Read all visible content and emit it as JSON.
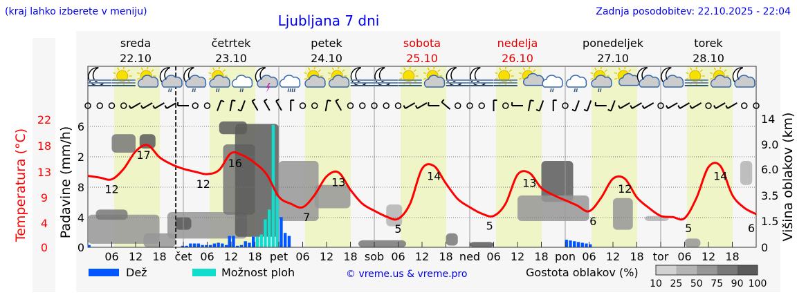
{
  "header": {
    "left_note": "(kraj lahko izberete v meniju)",
    "title": "Ljubljana 7 dni",
    "updated": "Zadnja posodobitev: 22.10.2025 - 22:04"
  },
  "days": [
    {
      "name": "sreda",
      "date": "22.10",
      "weekend": false
    },
    {
      "name": "četrtek",
      "date": "23.10",
      "weekend": false
    },
    {
      "name": "petek",
      "date": "24.10",
      "weekend": false
    },
    {
      "name": "sobota",
      "date": "25.10",
      "weekend": true
    },
    {
      "name": "nedelja",
      "date": "26.10",
      "weekend": true
    },
    {
      "name": "ponedeljek",
      "date": "27.10",
      "weekend": false
    },
    {
      "name": "torek",
      "date": "28.10",
      "weekend": false
    }
  ],
  "colors": {
    "temperature": "#ff0000",
    "rain": "#0055ff",
    "showers": "#11ddcc",
    "daylight": "#f0f5c8",
    "weekend": "#dd0000",
    "link": "#0000ee"
  },
  "icons": [
    "moon-fog",
    "sun-fog",
    "sun-cloud",
    "moon-cloud-rain",
    "moon-cloud-rain",
    "sun-cloud-rain",
    "cloud-rain",
    "moon-cloud-thunder",
    "cloud-heavy-rain",
    "sun-cloud",
    "sun-cloud",
    "moon-fog",
    "moon-fog",
    "sun-fog",
    "sun-cloud",
    "moon-fog",
    "moon-fog",
    "sun-fog",
    "sun-small-cloud",
    "cloud-rain",
    "cloud-rain",
    "sun-cloud-rain",
    "sun-small-cloud",
    "moon-cloud",
    "moon-cloud",
    "sun-fog",
    "sun-cloud",
    "moon-cloud"
  ],
  "chart_data": {
    "type": "line",
    "title": "Ljubljana 7 dni",
    "x_unit": "hours from 22.10 00:00",
    "x_tick_labels": [
      "06",
      "12",
      "18",
      "čet",
      "06",
      "12",
      "18",
      "pet",
      "06",
      "12",
      "18",
      "sob",
      "06",
      "12",
      "18",
      "ned",
      "06",
      "12",
      "18",
      "pon",
      "06",
      "12",
      "18",
      "tor",
      "06",
      "12",
      "18"
    ],
    "left_axis_temperature": {
      "label": "Temperatura (°C)",
      "ticks": [
        "0",
        "4",
        "9",
        "13",
        "18",
        "22"
      ],
      "range": [
        0,
        22
      ]
    },
    "left_axis_precip": {
      "label": "Padavine (mm/h)",
      "ticks": [
        "0",
        "4",
        "8",
        "2",
        "6"
      ]
    },
    "right_axis_clouds": {
      "label": "Višina oblakov (km)",
      "ticks": [
        "0",
        "1.5",
        "3.5",
        "6.0",
        "9.0",
        "14"
      ]
    },
    "temperature": {
      "step_hours": 3,
      "values": [
        12.3,
        12.0,
        11.7,
        13.5,
        16.5,
        17.6,
        15.5,
        14.3,
        13.5,
        13.0,
        12.6,
        13.3,
        16.2,
        15.8,
        14.5,
        12.5,
        8.7,
        7.5,
        6.9,
        9.0,
        12.2,
        12.9,
        9.9,
        7.5,
        6.3,
        5.3,
        4.9,
        7.5,
        13.5,
        14.0,
        11.0,
        8.3,
        6.9,
        5.8,
        5.4,
        7.5,
        12.5,
        12.8,
        10.2,
        9.0,
        8.1,
        7.2,
        6.2,
        8.5,
        11.8,
        11.8,
        8.6,
        6.8,
        5.4,
        5.2,
        5.0,
        8.5,
        13.8,
        14.0,
        9.0,
        6.8,
        5.7
      ]
    },
    "temperature_labels": [
      {
        "h": 6,
        "v": "12"
      },
      {
        "h": 14,
        "v": "17"
      },
      {
        "h": 29,
        "v": "12"
      },
      {
        "h": 37,
        "v": "16"
      },
      {
        "h": 55,
        "v": "7"
      },
      {
        "h": 63,
        "v": "13"
      },
      {
        "h": 78,
        "v": "5"
      },
      {
        "h": 87,
        "v": "14"
      },
      {
        "h": 101,
        "v": "5"
      },
      {
        "h": 111,
        "v": "13"
      },
      {
        "h": 127,
        "v": "6"
      },
      {
        "h": 135,
        "v": "12"
      },
      {
        "h": 151,
        "v": "5"
      },
      {
        "h": 159,
        "v": "14"
      },
      {
        "h": 168,
        "v": "6"
      }
    ],
    "precipitation": [
      {
        "h": 0.3,
        "v": 0.03,
        "type": "rain"
      },
      {
        "h": 23.8,
        "v": 0.02,
        "type": "rain"
      },
      {
        "h": 24.8,
        "v": 0.02,
        "type": "rain"
      },
      {
        "h": 25.8,
        "v": 0.05,
        "type": "rain"
      },
      {
        "h": 26.8,
        "v": 0.05,
        "type": "rain"
      },
      {
        "h": 27.8,
        "v": 0.05,
        "type": "rain"
      },
      {
        "h": 28.8,
        "v": 0.03,
        "type": "rain"
      },
      {
        "h": 29.8,
        "v": 0.03,
        "type": "rain"
      },
      {
        "h": 30.8,
        "v": 0.03,
        "type": "rain"
      },
      {
        "h": 31.8,
        "v": 0.05,
        "type": "rain"
      },
      {
        "h": 32.8,
        "v": 0.06,
        "type": "rain"
      },
      {
        "h": 33.8,
        "v": 0.05,
        "type": "rain"
      },
      {
        "h": 34.8,
        "v": 0.03,
        "type": "rain"
      },
      {
        "h": 35.6,
        "v": 0.15,
        "type": "rain"
      },
      {
        "h": 36.6,
        "v": 0.15,
        "type": "rain"
      },
      {
        "h": 37.6,
        "v": 0.02,
        "type": "rain"
      },
      {
        "h": 38.6,
        "v": 0.03,
        "type": "rain"
      },
      {
        "h": 39.6,
        "v": 0.08,
        "type": "rain"
      },
      {
        "h": 40.6,
        "v": 0.06,
        "type": "rain"
      },
      {
        "h": 41.6,
        "v": 0.14,
        "type": "rain"
      },
      {
        "h": 42.6,
        "v": 0.14,
        "type": "showers"
      },
      {
        "h": 43.6,
        "v": 0.17,
        "type": "showers"
      },
      {
        "h": 44.6,
        "v": 0.37,
        "type": "showers"
      },
      {
        "h": 45.6,
        "v": 0.5,
        "type": "showers"
      },
      {
        "h": 46.6,
        "v": 1.62,
        "type": "showers"
      },
      {
        "h": 47.6,
        "v": 0.68,
        "type": "showers"
      },
      {
        "h": 48.6,
        "v": 0.4,
        "type": "rain"
      },
      {
        "h": 49.6,
        "v": 0.19,
        "type": "rain"
      },
      {
        "h": 50.6,
        "v": 0.15,
        "type": "rain"
      },
      {
        "h": 120.3,
        "v": 0.1,
        "type": "rain"
      },
      {
        "h": 121.3,
        "v": 0.09,
        "type": "rain"
      },
      {
        "h": 122.3,
        "v": 0.08,
        "type": "rain"
      },
      {
        "h": 123.3,
        "v": 0.07,
        "type": "rain"
      },
      {
        "h": 124.3,
        "v": 0.06,
        "type": "rain"
      },
      {
        "h": 125.3,
        "v": 0.05,
        "type": "rain"
      },
      {
        "h": 126.3,
        "v": 0.04,
        "type": "rain"
      }
    ],
    "wind_directions_deg_step3h": [
      null,
      null,
      null,
      null,
      240,
      240,
      240,
      240,
      270,
      null,
      null,
      20,
      10,
      200,
      330,
      330,
      330,
      0,
      null,
      null,
      10,
      330,
      null,
      null,
      null,
      null,
      null,
      240,
      240,
      270,
      310,
      null,
      null,
      null,
      0,
      null,
      270,
      10,
      200,
      0,
      null,
      200,
      200,
      270,
      200,
      240,
      240,
      240,
      null,
      240,
      240,
      240,
      null,
      240,
      240,
      null,
      null
    ],
    "cloud_density": [
      {
        "h": [
          0,
          18
        ],
        "km": [
          0.2,
          2.0
        ],
        "pct": 50
      },
      {
        "h": [
          2,
          10
        ],
        "km": [
          1.6,
          2.4
        ],
        "pct": 75
      },
      {
        "h": [
          14,
          22
        ],
        "km": [
          0,
          0.8
        ],
        "pct": 50
      },
      {
        "h": [
          6,
          12
        ],
        "km": [
          8.0,
          11.0
        ],
        "pct": 75
      },
      {
        "h": [
          13,
          17
        ],
        "km": [
          8.5,
          11.0
        ],
        "pct": 90
      },
      {
        "h": [
          20,
          40
        ],
        "km": [
          0.5,
          2.2
        ],
        "pct": 50
      },
      {
        "h": [
          22,
          26
        ],
        "km": [
          1.0,
          1.8
        ],
        "pct": 90
      },
      {
        "h": [
          34,
          42
        ],
        "km": [
          2,
          9
        ],
        "pct": 75
      },
      {
        "h": [
          37,
          48
        ],
        "km": [
          0.6,
          13
        ],
        "pct": 100
      },
      {
        "h": [
          33,
          40
        ],
        "km": [
          11,
          13.5
        ],
        "pct": 90
      },
      {
        "h": [
          48,
          58
        ],
        "km": [
          1.5,
          7
        ],
        "pct": 50
      },
      {
        "h": [
          57,
          66
        ],
        "km": [
          2.5,
          4.5
        ],
        "pct": 50
      },
      {
        "h": [
          68,
          80
        ],
        "km": [
          0,
          0.4
        ],
        "pct": 75
      },
      {
        "h": [
          75,
          79
        ],
        "km": [
          1.2,
          2.8
        ],
        "pct": 25
      },
      {
        "h": [
          90,
          93
        ],
        "km": [
          0.1,
          0.8
        ],
        "pct": 75
      },
      {
        "h": [
          96,
          102
        ],
        "km": [
          0,
          0.3
        ],
        "pct": 90
      },
      {
        "h": [
          114,
          122
        ],
        "km": [
          3,
          7
        ],
        "pct": 90
      },
      {
        "h": [
          108,
          126
        ],
        "km": [
          1.5,
          3.5
        ],
        "pct": 50
      },
      {
        "h": [
          132,
          137
        ],
        "km": [
          1.0,
          3.3
        ],
        "pct": 50
      },
      {
        "h": [
          140,
          146
        ],
        "km": [
          1.5,
          1.9
        ],
        "pct": 25
      },
      {
        "h": [
          150,
          154
        ],
        "km": [
          0,
          0.5
        ],
        "pct": 50
      },
      {
        "h": [
          164,
          167
        ],
        "km": [
          4.5,
          7
        ],
        "pct": 25
      }
    ],
    "legend": {
      "rain": "Dež",
      "showers": "Možnost ploh",
      "credit": "© vreme.us & vreme.pro",
      "density_title": "Gostota oblakov (%)",
      "density_ticks": [
        "10",
        "25",
        "50",
        "75",
        "90",
        "100"
      ],
      "density_colors": [
        "#d2d2d2",
        "#b4b4b4",
        "#969696",
        "#787878",
        "#5a5a5a"
      ]
    },
    "now_marker_hour": 22.1
  }
}
